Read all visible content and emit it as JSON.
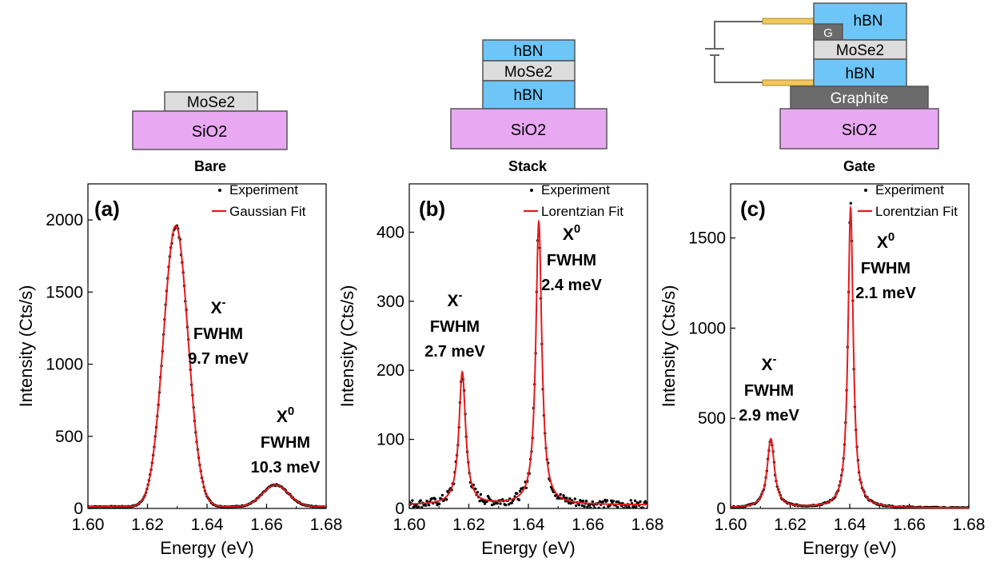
{
  "colors": {
    "sio2": "#e9a9f2",
    "mose2": "#dcdcdc",
    "hbn": "#6ec6f8",
    "graphite": "#6b6b6b",
    "electrode": "#f2c75c",
    "fit": "#e41a1c",
    "experiment": "#000000"
  },
  "devices": {
    "bare": {
      "caption": "Bare",
      "layers": [
        "MoSe2",
        "SiO2"
      ]
    },
    "stack": {
      "caption": "Stack",
      "layers": [
        "hBN",
        "MoSe2",
        "hBN",
        "SiO2"
      ]
    },
    "gate": {
      "caption": "Gate",
      "layers": [
        "hBN",
        "G",
        "MoSe2",
        "hBN",
        "Graphite",
        "SiO2"
      ]
    }
  },
  "chart_data": [
    {
      "type": "line",
      "panel_label": "(a)",
      "xlabel": "Energy (eV)",
      "ylabel": "Intensity (Cts/s)",
      "xlim": [
        1.6,
        1.68
      ],
      "ylim": [
        0,
        2250
      ],
      "xticks": [
        "1.60",
        "1.62",
        "1.64",
        "1.66",
        "1.68"
      ],
      "yticks": [
        "0",
        "500",
        "1000",
        "1500",
        "2000"
      ],
      "legend": [
        "Experiment",
        "Gaussian Fit"
      ],
      "legend_position": "top-right",
      "fit_model": "gaussian",
      "baseline": 12,
      "peaks": [
        {
          "name": "X-",
          "center": 1.6295,
          "height": 1948,
          "fwhm_meV": 9.7
        },
        {
          "name": "X0",
          "center": 1.663,
          "height": 150,
          "fwhm_meV": 10.3
        }
      ],
      "annotations": [
        {
          "species": "X",
          "sup": "-",
          "line1": "FWHM",
          "line2": "9.7 meV"
        },
        {
          "species": "X",
          "sup": "0",
          "line1": "FWHM",
          "line2": "10.3 meV"
        }
      ]
    },
    {
      "type": "line",
      "panel_label": "(b)",
      "xlabel": "Energy (eV)",
      "ylabel": "Intensity (Cts/s)",
      "xlim": [
        1.6,
        1.68
      ],
      "ylim": [
        0,
        470
      ],
      "xticks": [
        "1.60",
        "1.62",
        "1.64",
        "1.66",
        "1.68"
      ],
      "yticks": [
        "0",
        "100",
        "200",
        "300",
        "400"
      ],
      "legend": [
        "Experiment",
        "Lorentzian Fit"
      ],
      "legend_position": "top-right",
      "fit_model": "lorentzian",
      "baseline": 5,
      "peaks": [
        {
          "name": "X-",
          "center": 1.6178,
          "height": 192,
          "fwhm_meV": 2.7
        },
        {
          "name": "X0",
          "center": 1.6435,
          "height": 410,
          "fwhm_meV": 2.4
        }
      ],
      "annotations": [
        {
          "species": "X",
          "sup": "-",
          "line1": "FWHM",
          "line2": "2.7 meV"
        },
        {
          "species": "X",
          "sup": "0",
          "line1": "FWHM",
          "line2": "2.4 meV"
        }
      ]
    },
    {
      "type": "line",
      "panel_label": "(c)",
      "xlabel": "Energy (eV)",
      "ylabel": "Intensity (Cts/s)",
      "xlim": [
        1.6,
        1.68
      ],
      "ylim": [
        0,
        1800
      ],
      "xticks": [
        "1.60",
        "1.62",
        "1.64",
        "1.66",
        "1.68"
      ],
      "yticks": [
        "0",
        "500",
        "1000",
        "1500"
      ],
      "legend": [
        "Experiment",
        "Lorentzian Fit"
      ],
      "legend_position": "top-right",
      "fit_model": "lorentzian",
      "baseline": 2,
      "peaks": [
        {
          "name": "X-",
          "center": 1.6135,
          "height": 382,
          "fwhm_meV": 2.9
        },
        {
          "name": "X0",
          "center": 1.6403,
          "height": 1665,
          "fwhm_meV": 2.1
        }
      ],
      "annotations": [
        {
          "species": "X",
          "sup": "-",
          "line1": "FWHM",
          "line2": "2.9 meV"
        },
        {
          "species": "X",
          "sup": "0",
          "line1": "FWHM",
          "line2": "2.1 meV"
        }
      ]
    }
  ]
}
